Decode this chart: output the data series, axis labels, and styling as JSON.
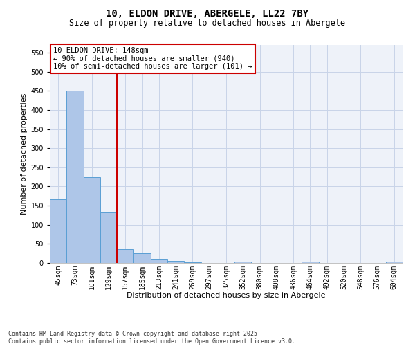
{
  "title1": "10, ELDON DRIVE, ABERGELE, LL22 7BY",
  "title2": "Size of property relative to detached houses in Abergele",
  "xlabel": "Distribution of detached houses by size in Abergele",
  "ylabel": "Number of detached properties",
  "categories": [
    "45sqm",
    "73sqm",
    "101sqm",
    "129sqm",
    "157sqm",
    "185sqm",
    "213sqm",
    "241sqm",
    "269sqm",
    "297sqm",
    "325sqm",
    "352sqm",
    "380sqm",
    "408sqm",
    "436sqm",
    "464sqm",
    "492sqm",
    "520sqm",
    "548sqm",
    "576sqm",
    "604sqm"
  ],
  "values": [
    167,
    450,
    225,
    133,
    37,
    25,
    10,
    6,
    2,
    0,
    0,
    3,
    0,
    0,
    0,
    4,
    0,
    0,
    0,
    0,
    4
  ],
  "bar_color": "#aec6e8",
  "bar_edge_color": "#5a9fd4",
  "vline_x": 3.5,
  "vline_color": "#cc0000",
  "annotation_text": "10 ELDON DRIVE: 148sqm\n← 90% of detached houses are smaller (940)\n10% of semi-detached houses are larger (101) →",
  "annotation_box_color": "#cc0000",
  "annotation_text_color": "#000000",
  "ylim": [
    0,
    570
  ],
  "yticks": [
    0,
    50,
    100,
    150,
    200,
    250,
    300,
    350,
    400,
    450,
    500,
    550
  ],
  "grid_color": "#c8d4e8",
  "bg_color": "#eef2f9",
  "footer": "Contains HM Land Registry data © Crown copyright and database right 2025.\nContains public sector information licensed under the Open Government Licence v3.0.",
  "title_fontsize": 10,
  "subtitle_fontsize": 8.5,
  "axis_label_fontsize": 8,
  "tick_fontsize": 7,
  "annotation_fontsize": 7.5
}
